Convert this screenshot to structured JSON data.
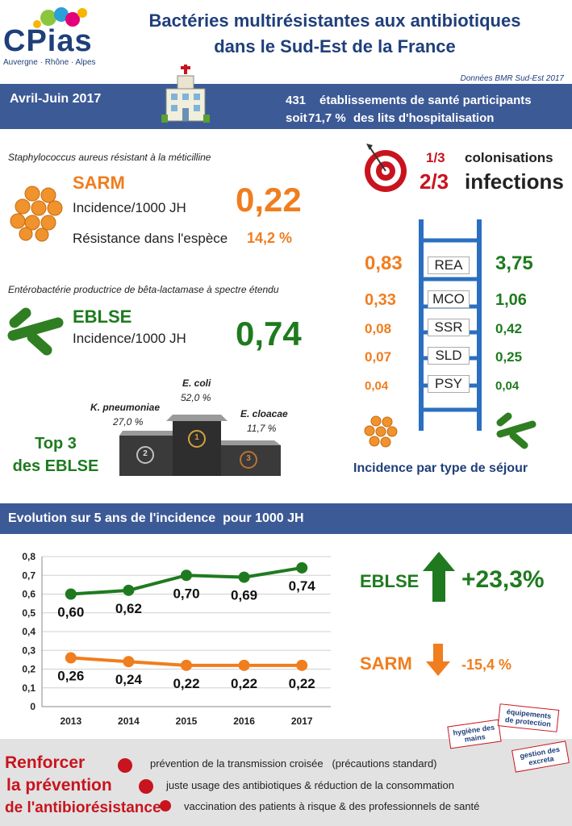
{
  "logo": {
    "brand": "CPias",
    "region": "Auvergne · Rhône · Alpes"
  },
  "header": {
    "title_line1": "Bactéries multirésistantes aux antibiotiques",
    "title_line2": "dans le Sud-Est de la France",
    "source": "Données BMR Sud-Est 2017"
  },
  "banner": {
    "period": "Avril-Juin 2017",
    "count": "431",
    "count_label": "établissements de santé participants",
    "soit": "soit",
    "pct": "71,7 %",
    "pct_label": "des lits d'hospitalisation"
  },
  "sarm": {
    "subtitle": "Staphylococcus aureus résistant à la méticilline",
    "name": "SARM",
    "incidence_label": "Incidence/1000 JH",
    "incidence_value": "0,22",
    "resistance_label": "Résistance dans l'espèce",
    "resistance_value": "14,2 %"
  },
  "ratio": {
    "col_frac": "1/3",
    "col_label": "colonisations",
    "inf_frac": "2/3",
    "inf_label": "infections"
  },
  "eblse": {
    "subtitle": "Entérobactérie productrice de bêta-lactamase à spectre étendu",
    "name": "EBLSE",
    "incidence_label": "Incidence/1000 JH",
    "incidence_value": "0,74"
  },
  "sejour": {
    "rows": [
      {
        "sarm": "0,83",
        "type": "REA",
        "eblse": "3,75"
      },
      {
        "sarm": "0,33",
        "type": "MCO",
        "eblse": "1,06"
      },
      {
        "sarm": "0,08",
        "type": "SSR",
        "eblse": "0,42"
      },
      {
        "sarm": "0,07",
        "type": "SLD",
        "eblse": "0,25"
      },
      {
        "sarm": "0,04",
        "type": "PSY",
        "eblse": "0,04"
      }
    ],
    "caption": "Incidence par type de séjour"
  },
  "podium": {
    "title_line1": "Top 3",
    "title_line2": "des EBLSE",
    "first_name": "E. coli",
    "first_pct": "52,0 %",
    "second_name": "K. pneumoniae",
    "second_pct": "27,0 %",
    "third_name": "E. cloacae",
    "third_pct": "11,7 %",
    "ranks": [
      "1",
      "2",
      "3"
    ]
  },
  "evolution": {
    "title": "Evolution sur 5 ans de l'incidence  pour 1000 JH",
    "eblse_label": "EBLSE",
    "eblse_change": "+23,3%",
    "sarm_label": "SARM",
    "sarm_change": "-15,4 %"
  },
  "chart_data": {
    "type": "line",
    "title": "",
    "xlabel": "",
    "ylabel": "",
    "categories": [
      "2013",
      "2014",
      "2015",
      "2016",
      "2017"
    ],
    "ylim": [
      0,
      0.8
    ],
    "yticks": [
      "0",
      "0,1",
      "0,2",
      "0,3",
      "0,4",
      "0,5",
      "0,6",
      "0,7",
      "0,8"
    ],
    "grid": true,
    "series": [
      {
        "values": [
          0.6,
          0.62,
          0.7,
          0.69,
          0.74
        ],
        "labels": [
          "0,60",
          "0,62",
          "0,70",
          "0,69",
          "0,74"
        ],
        "color": "#1f7a1f"
      },
      {
        "values": [
          0.26,
          0.24,
          0.22,
          0.22,
          0.22
        ],
        "labels": [
          "0,26",
          "0,24",
          "0,22",
          "0,22",
          "0,22"
        ],
        "color": "#f07d1e"
      }
    ]
  },
  "footer": {
    "title_line1": "Renforcer",
    "title_line2": "la prévention",
    "title_line3": "de l'antibiorésistance",
    "items": [
      "prévention de la transmission croisée   (précautions standard)",
      "juste usage des antibiotiques & réduction de la consommation",
      "vaccination des patients à risque & des professionnels de santé"
    ],
    "stamps": [
      "hygiène des mains",
      "équipements de protection",
      "gestion des excreta"
    ]
  },
  "colors": {
    "blue": "#3c5a96",
    "orange": "#f07d1e",
    "green": "#1f7a1f",
    "red": "#c8141e",
    "navy": "#1f3f7a"
  }
}
